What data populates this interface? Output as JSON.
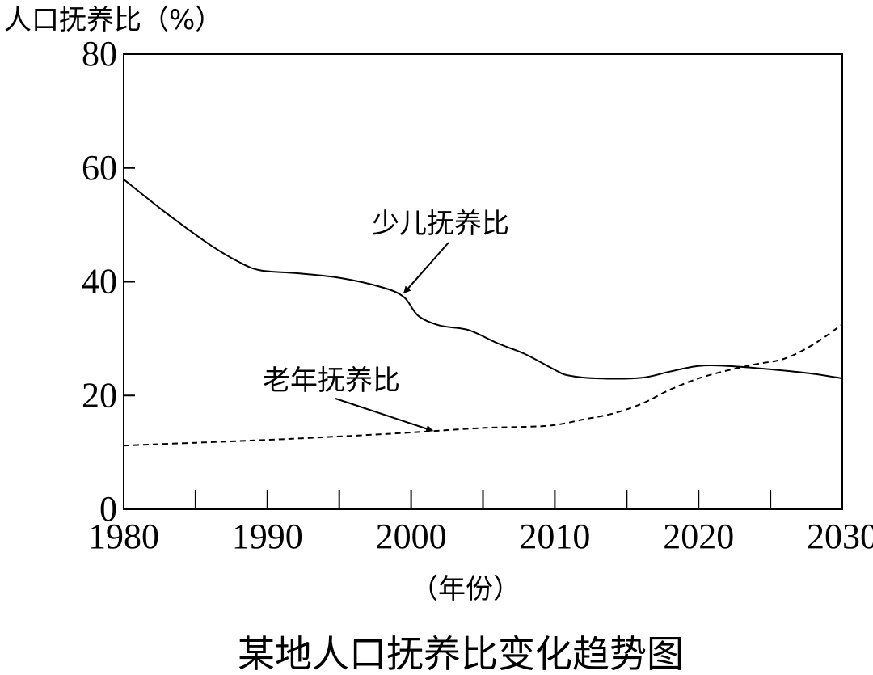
{
  "chart_data": {
    "type": "line",
    "title": "某地人口抚养比变化趋势图",
    "ylabel": "人口抚养比（%）",
    "xlabel": "（年份）",
    "xlim": [
      1980,
      2030
    ],
    "ylim": [
      0,
      80
    ],
    "x_ticks": [
      1980,
      1990,
      2000,
      2010,
      2020,
      2030
    ],
    "y_ticks": [
      0,
      20,
      40,
      60,
      80
    ],
    "grid": false,
    "legend": "none",
    "series": [
      {
        "name": "少儿抚养比",
        "style": "solid",
        "x": [
          1980,
          1983,
          1986,
          1988,
          1989.5,
          1992,
          1995,
          1998,
          1999.5,
          2000.5,
          2002,
          2004,
          2006,
          2008,
          2010,
          2011,
          2013,
          2016,
          2018,
          2020,
          2022,
          2025,
          2028,
          2030
        ],
        "y": [
          58,
          52,
          46.5,
          43.5,
          42,
          41.5,
          40.7,
          39,
          37.3,
          34,
          32.3,
          31.5,
          29.2,
          27.2,
          24.5,
          23.5,
          23,
          23.1,
          24.2,
          25.2,
          25.2,
          24.6,
          23.8,
          23
        ]
      },
      {
        "name": "老年抚养比",
        "style": "dashed",
        "x": [
          1980,
          1985,
          1990,
          1995,
          2000,
          2005,
          2008,
          2010,
          2012,
          2014,
          2016,
          2018,
          2020,
          2022,
          2024,
          2026,
          2028,
          2030
        ],
        "y": [
          11.2,
          11.7,
          12.2,
          12.8,
          13.5,
          14.3,
          14.5,
          14.8,
          15.8,
          16.8,
          18.5,
          21,
          23,
          24.4,
          25.5,
          26.5,
          29,
          32.5
        ]
      }
    ],
    "annotations": [
      {
        "text": "少儿抚养比",
        "series": "少儿抚养比",
        "arrow_to": [
          1999.5,
          38
        ]
      },
      {
        "text": "老年抚养比",
        "series": "老年抚养比",
        "arrow_to": [
          2001.5,
          13.8
        ]
      }
    ]
  }
}
